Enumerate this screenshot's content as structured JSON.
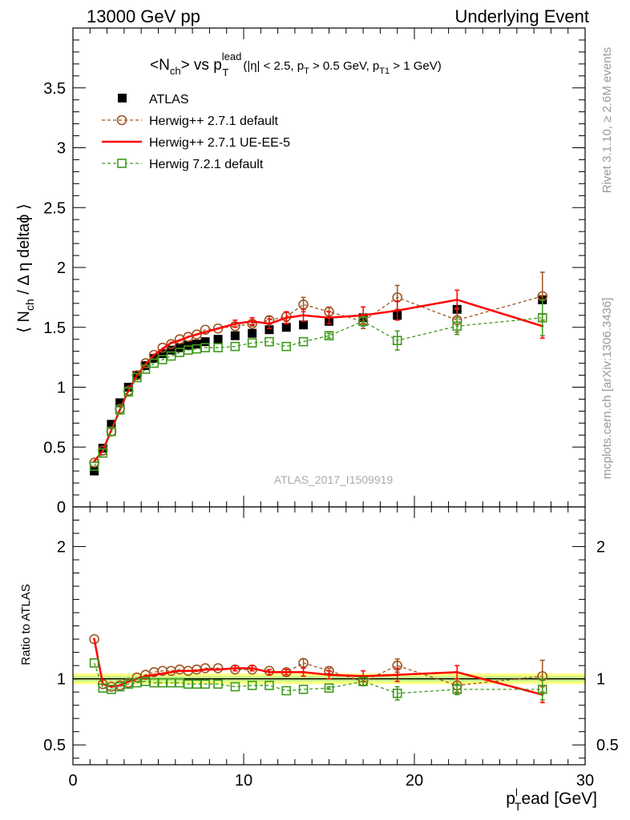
{
  "header": {
    "left": "13000 GeV pp",
    "right": "Underlying Event"
  },
  "side": {
    "rivet": "Rivet 3.1.10, ≥ 2.6M events",
    "mcplots": "mcplots.cern.ch [arXiv:1306.3436]"
  },
  "colors": {
    "atlas": "#000000",
    "herwigpp_default": "#a0541e",
    "herwigpp_ueee5": "#ff0000",
    "herwig7": "#3d9a1d",
    "band_outer": "#ffff80",
    "band_inner": "#c6f08a"
  },
  "chart_data": [
    {
      "type": "scatter",
      "panel": "main",
      "title_parts": {
        "t1": "<N",
        "t1sub": "ch",
        "t2": "> vs p",
        "t2sub": "T",
        "t2sup": "lead",
        "t3": "(|η| < 2.5, p",
        "t3sub": "T",
        "t4": " > 0.5 GeV, p",
        "t4sub": "T1",
        "t5": " > 1 GeV)"
      },
      "ylabel_parts": {
        "a": "⟨ N",
        "sub": "ch",
        "b": " / Δ η deltaϕ ⟩"
      },
      "watermark": "ATLAS_2017_I1509919",
      "xlim": [
        0,
        30
      ],
      "ylim": [
        0,
        4
      ],
      "yticks": [
        0,
        0.5,
        1,
        1.5,
        2,
        2.5,
        3,
        3.5
      ],
      "ytick_labels": [
        "0",
        "0.5",
        "1",
        "1.5",
        "2",
        "2.5",
        "3",
        "3.5"
      ],
      "legend_position": "top-left",
      "legend": [
        "ATLAS",
        "Herwig++ 2.7.1 default",
        "Herwig++ 2.7.1 UE-EE-5",
        "Herwig 7.2.1 default"
      ],
      "x": [
        1.25,
        1.75,
        2.25,
        2.75,
        3.25,
        3.75,
        4.25,
        4.75,
        5.25,
        5.75,
        6.25,
        6.75,
        7.25,
        7.75,
        8.5,
        9.5,
        10.5,
        11.5,
        12.5,
        13.5,
        15,
        17,
        19,
        22.5,
        27.5
      ],
      "series": [
        {
          "name": "ATLAS",
          "values": [
            0.3,
            0.49,
            0.69,
            0.87,
            1.0,
            1.1,
            1.18,
            1.24,
            1.28,
            1.31,
            1.33,
            1.35,
            1.36,
            1.38,
            1.4,
            1.43,
            1.45,
            1.48,
            1.5,
            1.52,
            1.55,
            1.58,
            1.6,
            1.65,
            1.73
          ]
        },
        {
          "name": "Herwig++ 2.7.1 default",
          "values": [
            0.37,
            0.47,
            0.63,
            0.82,
            0.97,
            1.1,
            1.2,
            1.27,
            1.33,
            1.36,
            1.4,
            1.42,
            1.44,
            1.48,
            1.49,
            1.51,
            1.53,
            1.56,
            1.59,
            1.69,
            1.63,
            1.55,
            1.75,
            1.56,
            1.76
          ]
        },
        {
          "name": "Herwig++ 2.7.1 UE-EE-5",
          "values": [
            0.38,
            0.47,
            0.64,
            0.81,
            0.97,
            1.1,
            1.19,
            1.27,
            1.32,
            1.37,
            1.39,
            1.42,
            1.44,
            1.46,
            1.49,
            1.53,
            1.55,
            1.53,
            1.58,
            1.6,
            1.58,
            1.6,
            1.64,
            1.73,
            1.51
          ]
        },
        {
          "name": "Herwig 7.2.1 default",
          "values": [
            0.34,
            0.45,
            0.63,
            0.81,
            0.96,
            1.08,
            1.15,
            1.2,
            1.23,
            1.26,
            1.29,
            1.31,
            1.32,
            1.33,
            1.33,
            1.34,
            1.37,
            1.38,
            1.34,
            1.38,
            1.43,
            1.55,
            1.39,
            1.51,
            1.58
          ]
        }
      ],
      "errors": {
        "Herwig++ 2.7.1 default": [
          0,
          0,
          0,
          0,
          0,
          0,
          0,
          0,
          0,
          0,
          0,
          0,
          0,
          0,
          0,
          0,
          0.02,
          0.03,
          0.04,
          0.06,
          0.04,
          0.06,
          0.1,
          0.1,
          0.2
        ],
        "Herwig++ 2.7.1 UE-EE-5": [
          0,
          0,
          0,
          0,
          0,
          0,
          0,
          0,
          0,
          0,
          0,
          0,
          0,
          0,
          0,
          0.03,
          0.03,
          0.04,
          0.05,
          0.05,
          0.05,
          0.07,
          0.08,
          0.08,
          0.1
        ],
        "Herwig 7.2.1 default": [
          0,
          0,
          0,
          0,
          0,
          0,
          0,
          0,
          0,
          0,
          0,
          0,
          0,
          0,
          0,
          0,
          0,
          0,
          0,
          0,
          0.02,
          0.04,
          0.08,
          0.07,
          0.15
        ]
      }
    },
    {
      "type": "scatter",
      "panel": "ratio",
      "ylabel": "Ratio to ATLAS",
      "xlabel_parts": {
        "p": "p",
        "sub": "T",
        "sup": "l",
        "rest": "ead [GeV]"
      },
      "xlim": [
        0,
        30
      ],
      "ylim": [
        0.35,
        2.3
      ],
      "xticks": [
        0,
        10,
        20,
        30
      ],
      "xtick_labels": [
        "0",
        "10",
        "20",
        "30"
      ],
      "yticks": [
        0.5,
        1,
        2
      ],
      "ytick_labels": [
        "0.5",
        "1",
        "2"
      ],
      "x": [
        1.25,
        1.75,
        2.25,
        2.75,
        3.25,
        3.75,
        4.25,
        4.75,
        5.25,
        5.75,
        6.25,
        6.75,
        7.25,
        7.75,
        8.5,
        9.5,
        10.5,
        11.5,
        12.5,
        13.5,
        15,
        17,
        19,
        22.5,
        27.5
      ],
      "series": [
        {
          "name": "Herwig++ 2.7.1 default",
          "values": [
            1.3,
            0.96,
            0.94,
            0.95,
            0.97,
            1.01,
            1.03,
            1.05,
            1.06,
            1.06,
            1.07,
            1.06,
            1.07,
            1.08,
            1.08,
            1.07,
            1.07,
            1.06,
            1.05,
            1.12,
            1.06,
            0.98,
            1.1,
            0.95,
            1.02
          ]
        },
        {
          "name": "Herwig++ 2.7.1 UE-EE-5",
          "values": [
            1.3,
            0.96,
            0.94,
            0.95,
            0.98,
            1.0,
            1.02,
            1.03,
            1.04,
            1.05,
            1.06,
            1.06,
            1.06,
            1.07,
            1.07,
            1.08,
            1.08,
            1.05,
            1.05,
            1.05,
            1.03,
            1.02,
            1.03,
            1.05,
            0.88
          ]
        },
        {
          "name": "Herwig 7.2.1 default",
          "values": [
            1.12,
            0.93,
            0.92,
            0.94,
            0.96,
            0.97,
            0.98,
            0.97,
            0.97,
            0.97,
            0.97,
            0.96,
            0.96,
            0.96,
            0.96,
            0.94,
            0.95,
            0.95,
            0.91,
            0.92,
            0.93,
            0.98,
            0.89,
            0.92,
            0.92
          ]
        }
      ],
      "errors": {
        "Herwig++ 2.7.1 default": [
          0,
          0,
          0,
          0,
          0,
          0,
          0,
          0,
          0,
          0,
          0,
          0,
          0,
          0,
          0,
          0,
          0,
          0,
          0.02,
          0.03,
          0.02,
          0.03,
          0.05,
          0.05,
          0.12
        ],
        "Herwig++ 2.7.1 UE-EE-5": [
          0,
          0,
          0,
          0,
          0,
          0,
          0,
          0,
          0,
          0,
          0,
          0,
          0,
          0,
          0,
          0.02,
          0.02,
          0.02,
          0.02,
          0.03,
          0.03,
          0.04,
          0.05,
          0.05,
          0.06
        ],
        "Herwig 7.2.1 default": [
          0,
          0,
          0,
          0,
          0,
          0,
          0,
          0,
          0,
          0,
          0,
          0,
          0,
          0,
          0,
          0,
          0,
          0,
          0,
          0,
          0.01,
          0.03,
          0.05,
          0.04,
          0.08
        ]
      },
      "reference_band": {
        "inner": [
          0.98,
          1.02
        ],
        "outer": [
          0.96,
          1.04
        ]
      }
    }
  ]
}
